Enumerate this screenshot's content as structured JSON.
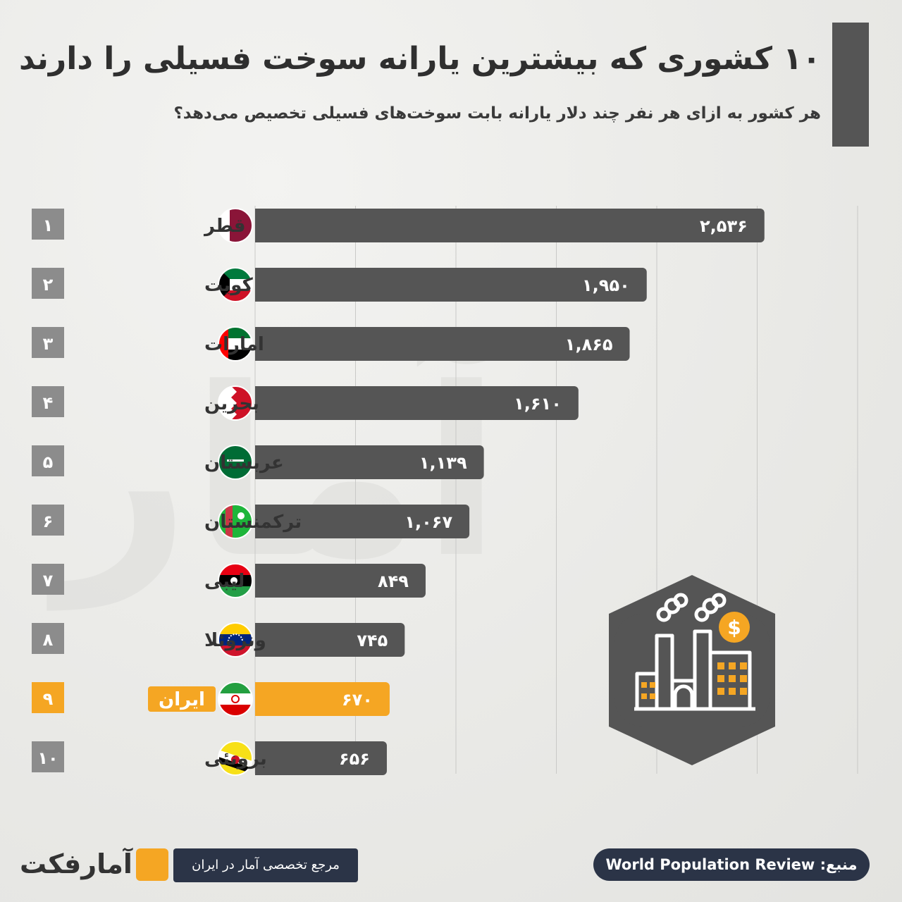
{
  "header": {
    "title": "۱۰ کشوری که بیشترین یارانه سوخت فسیلی را دارند",
    "subtitle": "هر کشور به ازای هر نفر چند دلار یارانه بابت سوخت‌های فسیلی تخصیص می‌دهد؟"
  },
  "colors": {
    "bar": "#555555",
    "highlight": "#f5a623",
    "rank_box": "#8c8c8c",
    "grid": "#c9c9c7",
    "navy": "#2b3447"
  },
  "chart_data": {
    "type": "bar",
    "orientation": "horizontal",
    "grid": true,
    "categories": [
      "قطر",
      "کویت",
      "امارات",
      "بحرین",
      "عربستان",
      "ترکمنستان",
      "لیبی",
      "ونزوئلا",
      "ایران",
      "برونئی"
    ],
    "ranks": [
      "۱",
      "۲",
      "۳",
      "۴",
      "۵",
      "۶",
      "۷",
      "۸",
      "۹",
      "۱۰"
    ],
    "values": [
      2536,
      1950,
      1865,
      1610,
      1139,
      1067,
      849,
      745,
      670,
      656
    ],
    "value_labels": [
      "۲,۵۳۶",
      "۱,۹۵۰",
      "۱,۸۶۵",
      "۱,۶۱۰",
      "۱,۱۳۹",
      "۱,۰۶۷",
      "۸۴۹",
      "۷۴۵",
      "۶۷۰",
      "۶۵۶"
    ],
    "highlight": "ایران",
    "xlim": [
      0,
      3000
    ]
  },
  "icons": {
    "flags": [
      "qatar-flag-icon",
      "kuwait-flag-icon",
      "uae-flag-icon",
      "bahrain-flag-icon",
      "saudi-flag-icon",
      "turkmenistan-flag-icon",
      "libya-flag-icon",
      "venezuela-flag-icon",
      "iran-flag-icon",
      "brunei-flag-icon"
    ],
    "illustration": "factory-dollar-icon"
  },
  "footer": {
    "brand": "آمارفکت",
    "tagline": "مرجع تخصصی آمار در ایران",
    "source": "منبع: World Population Review"
  }
}
